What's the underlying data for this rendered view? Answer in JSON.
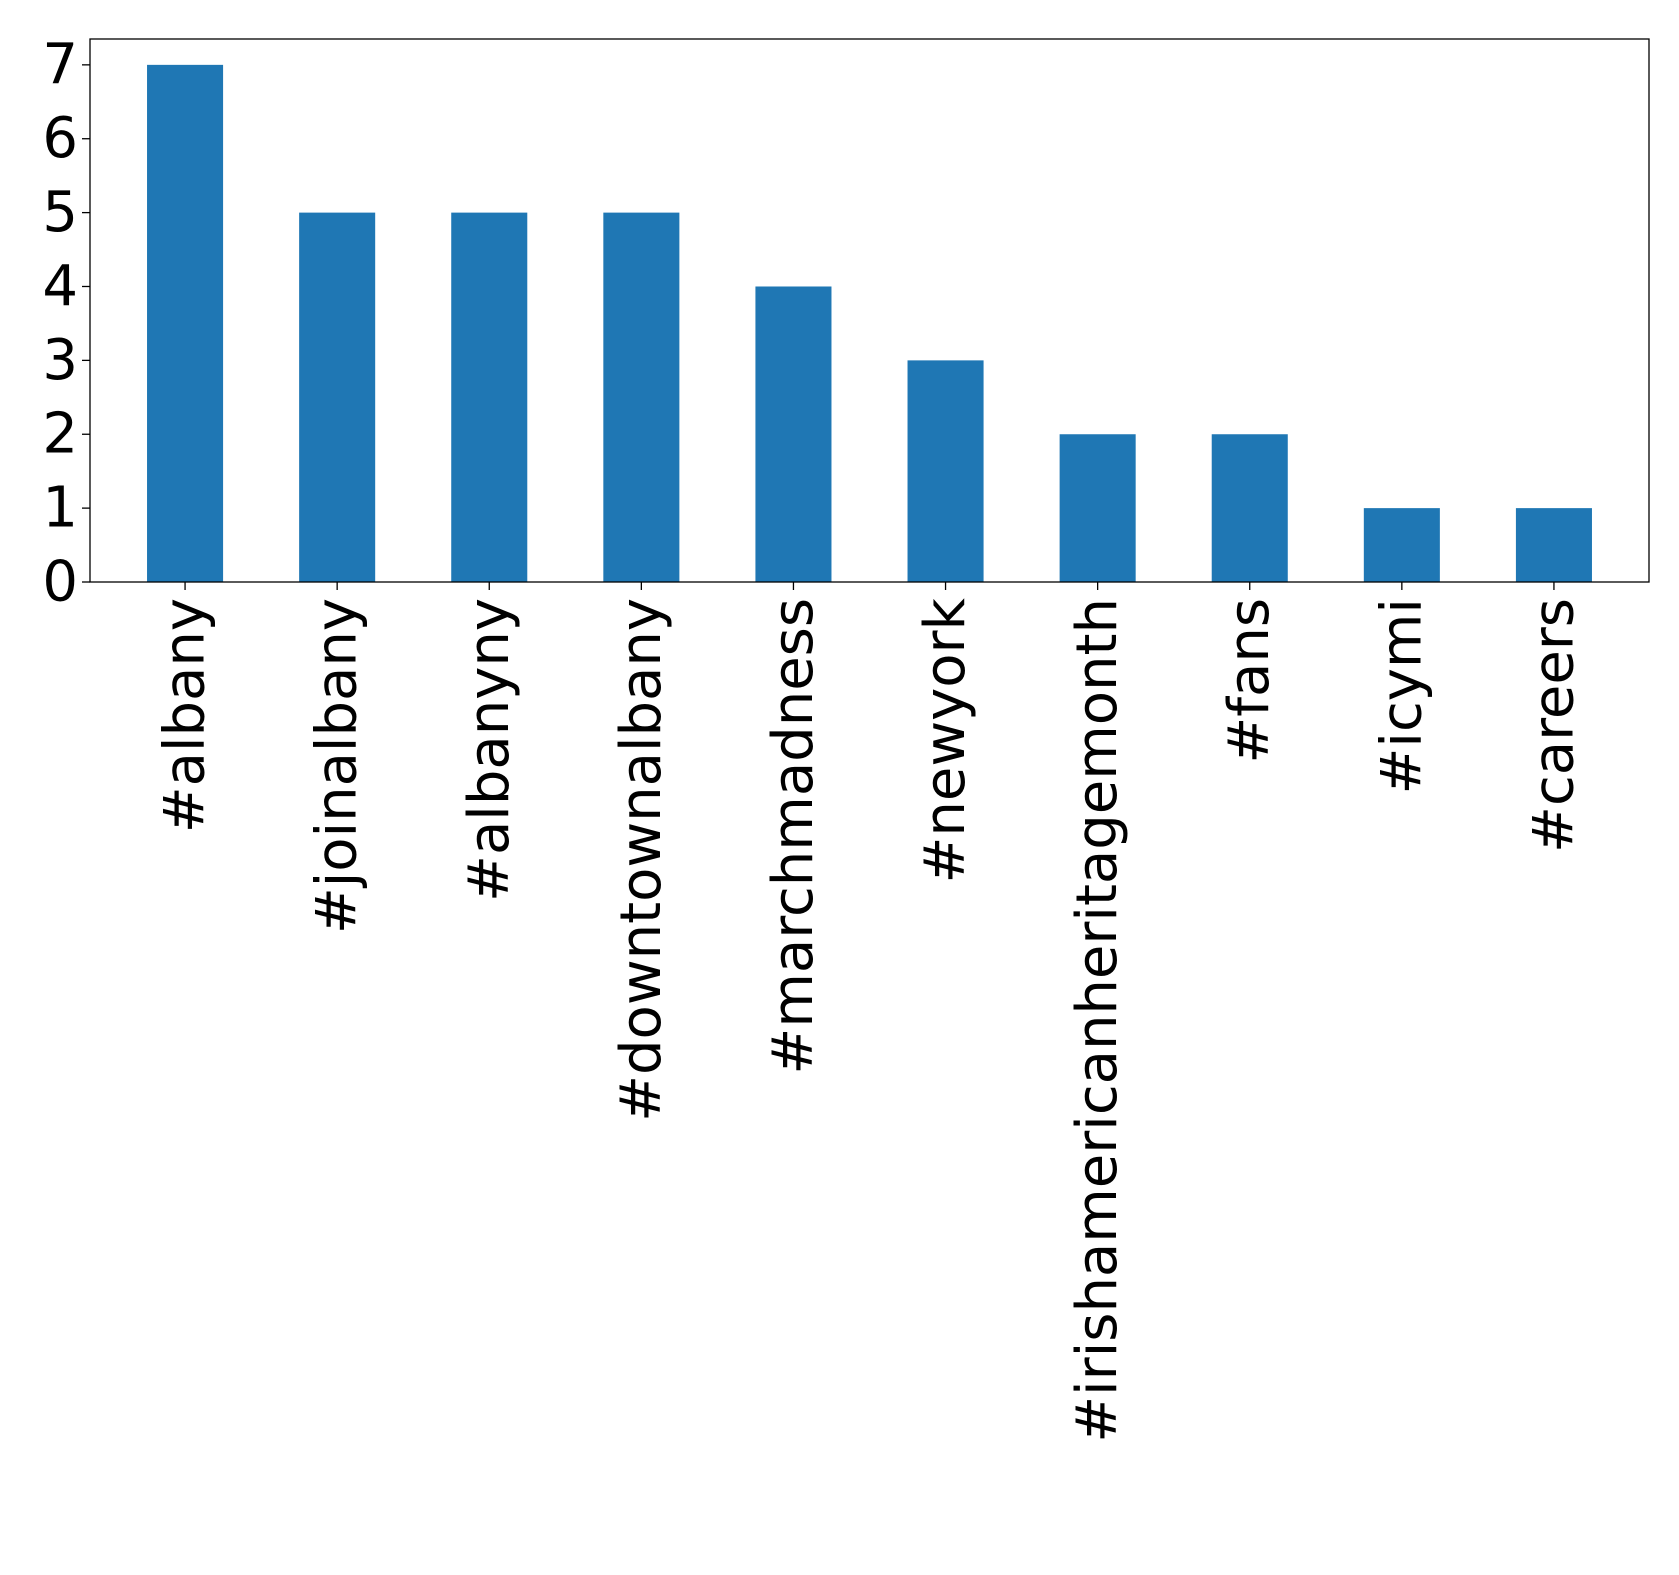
{
  "chart_data": {
    "type": "bar",
    "categories": [
      "#albany",
      "#joinalbany",
      "#albanyny",
      "#downtownalbany",
      "#marchmadness",
      "#newyork",
      "#irishamericanheritagemonth",
      "#fans",
      "#icymi",
      "#careers"
    ],
    "values": [
      7,
      5,
      5,
      5,
      4,
      3,
      2,
      2,
      1,
      1
    ],
    "yticks": [
      "0",
      "1",
      "2",
      "3",
      "4",
      "5",
      "6",
      "7"
    ],
    "ylim": [
      0,
      7.35
    ],
    "grid": false,
    "bar_color": "#1f77b4"
  }
}
